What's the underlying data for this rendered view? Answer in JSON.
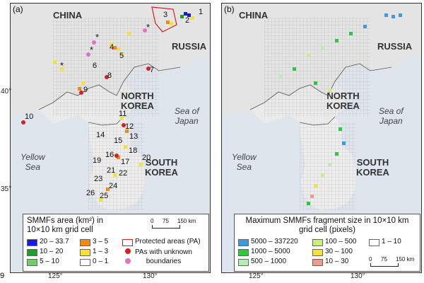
{
  "panels": {
    "a": {
      "label": "(a)",
      "countries": {
        "china": "CHINA",
        "russia": "RUSSIA",
        "north_korea": "NORTH\nKOREA",
        "south_korea": "SOUTH\nKOREA"
      },
      "seas": {
        "yellow": "Yellow\nSea",
        "japan": "Sea of\nJapan"
      },
      "site_numbers": [
        "1",
        "2",
        "3",
        "4",
        "5",
        "6",
        "7",
        "8",
        "9",
        "10",
        "11",
        "12",
        "13",
        "14",
        "15",
        "16",
        "17",
        "18",
        "19",
        "20",
        "21",
        "22",
        "23",
        "24",
        "25",
        "26"
      ],
      "asterisks": [
        "*",
        "*",
        "*",
        "*"
      ]
    },
    "b": {
      "label": "(b)",
      "countries": {
        "china": "CHINA",
        "russia": "RUSSIA",
        "north_korea": "NORTH\nKOREA",
        "south_korea": "SOUTH\nKOREA"
      },
      "seas": {
        "yellow": "Yellow\nSea",
        "japan": "Sea of\nJapan"
      }
    }
  },
  "axes": {
    "lat_labels": [
      "40°",
      "35°"
    ],
    "lon_labels_a": [
      "125°",
      "130°"
    ],
    "lon_labels_b": [
      "125°",
      "130°"
    ]
  },
  "legend_a": {
    "title": "SMMFs area (km²) in\n10×10 km grid cell",
    "items": [
      {
        "label": "20 – 33.7",
        "color": "#1a1adb"
      },
      {
        "label": "10 – 20",
        "color": "#1e9e2a"
      },
      {
        "label": "5 – 10",
        "color": "#6fd06a"
      },
      {
        "label": "3 – 5",
        "color": "#f08a16"
      },
      {
        "label": "1 – 3",
        "color": "#f6e03a"
      },
      {
        "label": "0 – 1",
        "color": "#ffffff"
      }
    ],
    "pa_label": "Protected areas (PA)",
    "pa_unknown_label": "PAs with unknown\nboundaries",
    "pa_color": "#d42020",
    "pa_unknown_color": "#e070c8",
    "scale": {
      "s0": "0",
      "s1": "75",
      "s2": "150 km"
    }
  },
  "legend_b": {
    "title": "Maximum SMMFs fragment size in 10×10 km\ngrid cell (pixels)",
    "items": [
      {
        "label": "5000 – 337220",
        "color": "#3a9be0"
      },
      {
        "label": "1000 – 5000",
        "color": "#2ec93a"
      },
      {
        "label": "500 – 1000",
        "color": "#b6f0b0"
      },
      {
        "label": "100 – 500",
        "color": "#c8f07a"
      },
      {
        "label": "30 – 100",
        "color": "#f6e040"
      },
      {
        "label": "10 – 30",
        "color": "#f49a8a"
      },
      {
        "label": "1 – 10",
        "color": "#ffffff"
      }
    ],
    "scale": {
      "s0": "0",
      "s1": "75",
      "s2": "150 km"
    }
  },
  "stray_text": "9"
}
